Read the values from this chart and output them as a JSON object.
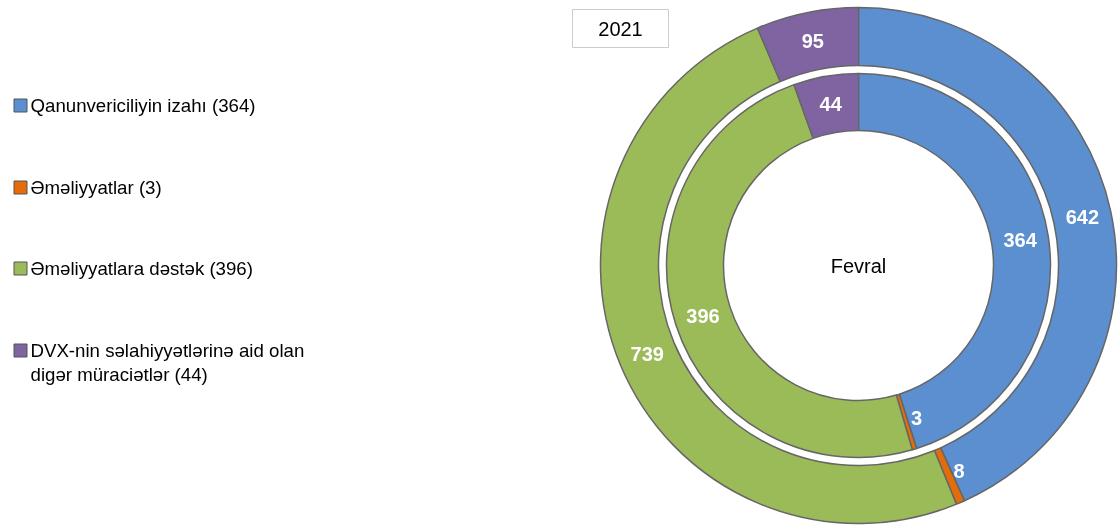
{
  "chart_data": {
    "type": "donut",
    "categories": [
      "Qanunvericiliyin izahı (364)",
      "Əməliyyatlar (3)",
      "Əməliyyatlara dəstək (396)",
      "DVX-nin səlahiyyətlərinə aid olan digər müraciətlər (44)"
    ],
    "colors": [
      "#5b8fd0",
      "#e46c0a",
      "#9bbb59",
      "#8064a2"
    ],
    "series": [
      {
        "name": "2021",
        "values": [
          642,
          8,
          739,
          95
        ]
      },
      {
        "name": "Fevral",
        "values": [
          364,
          3,
          396,
          44
        ]
      }
    ],
    "data_labels": true,
    "legend": "left"
  }
}
